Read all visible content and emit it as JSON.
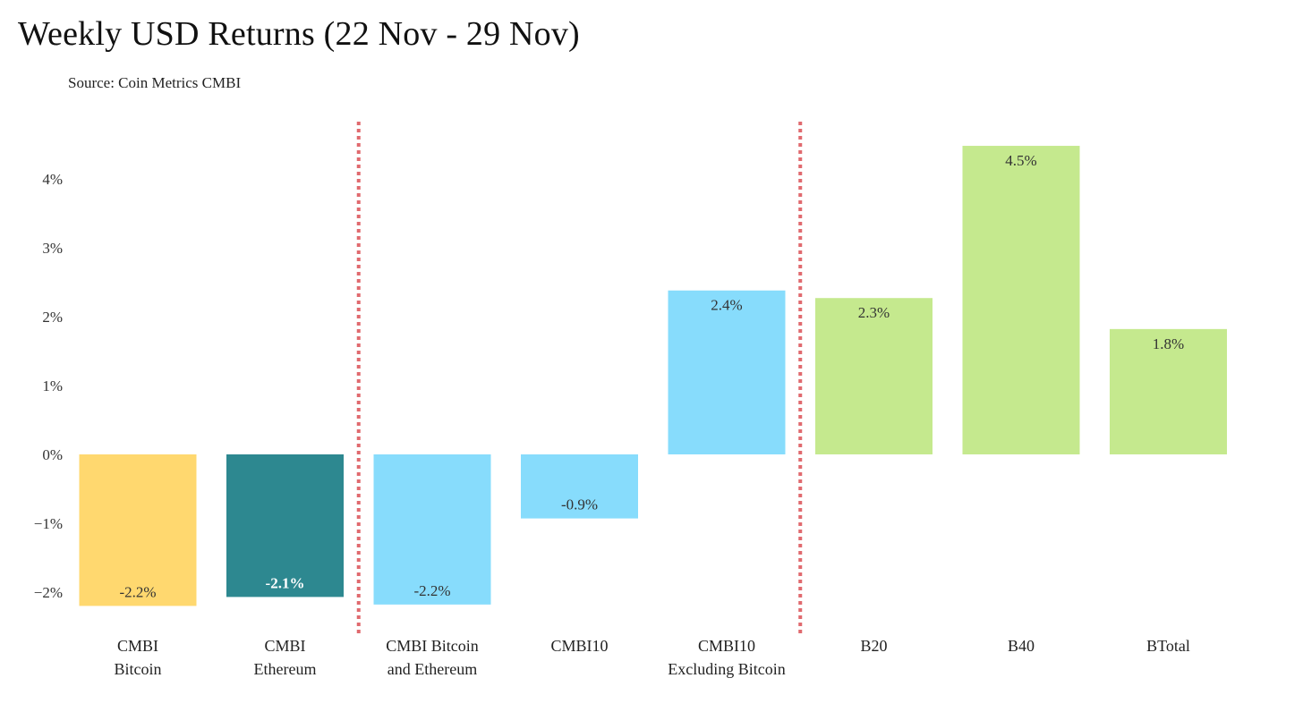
{
  "title": "Weekly USD Returns (22 Nov - 29 Nov)",
  "subtitle": "Source: Coin Metrics CMBI",
  "chart_data": {
    "type": "bar",
    "categories": [
      [
        "CMBI",
        "Bitcoin"
      ],
      [
        "CMBI",
        "Ethereum"
      ],
      [
        "CMBI Bitcoin",
        "and Ethereum"
      ],
      [
        "CMBI10"
      ],
      [
        "CMBI10",
        "Excluding Bitcoin"
      ],
      [
        "B20"
      ],
      [
        "B40"
      ],
      [
        "BTotal"
      ]
    ],
    "values": [
      -2.2,
      -2.07,
      -2.18,
      -0.93,
      2.38,
      2.27,
      4.48,
      1.82
    ],
    "data_labels": [
      "-2.2%",
      "-2.1%",
      "-2.2%",
      "-0.9%",
      "2.4%",
      "2.3%",
      "4.5%",
      "1.8%"
    ],
    "colors": [
      "#ffd86f",
      "#2d8890",
      "#87dcfc",
      "#87dcfc",
      "#87dcfc",
      "#c5e98e",
      "#c5e98e",
      "#c5e98e"
    ],
    "label_colors": [
      "#333333",
      "#ffffff",
      "#333333",
      "#333333",
      "#333333",
      "#333333",
      "#333333",
      "#333333"
    ],
    "yticks": [
      -2,
      -1,
      0,
      1,
      2,
      3,
      4
    ],
    "ytick_labels": [
      "−2%",
      "−1%",
      "0%",
      "1%",
      "2%",
      "3%",
      "4%"
    ],
    "ylim": [
      -2.45,
      4.9
    ],
    "xlabel": "",
    "ylabel": "",
    "dividers_after_index": [
      1,
      4
    ],
    "divider_color": "#e06a6f",
    "grid": false,
    "legend": "none"
  }
}
